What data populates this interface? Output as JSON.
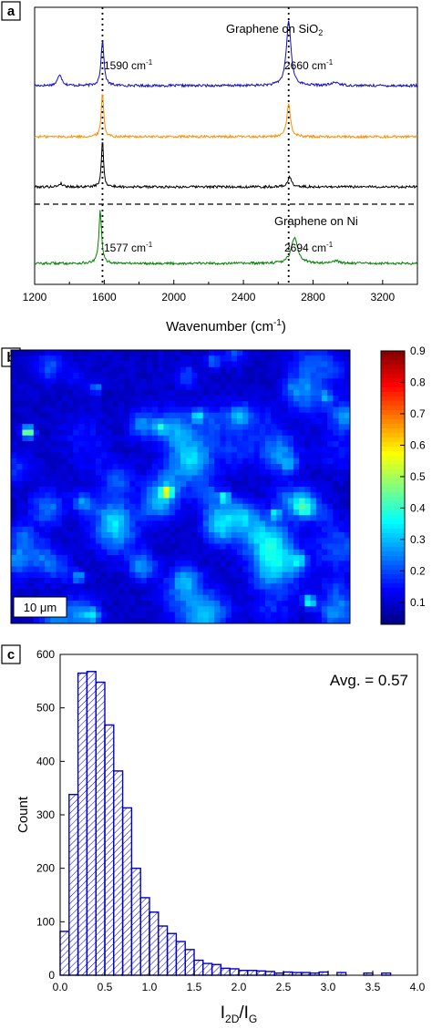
{
  "panels": {
    "a": {
      "letter": "a"
    },
    "b": {
      "letter": "b"
    },
    "c": {
      "letter": "c"
    }
  },
  "chart_data": [
    {
      "type": "line",
      "panel": "a",
      "xlabel": "Wavenumber (cm",
      "xlabel_sup": "-1",
      "xlabel_close": ")",
      "xlim": [
        1200,
        3400
      ],
      "xticks": [
        1200,
        1600,
        2000,
        2400,
        2800,
        3200
      ],
      "y_axis_shown": false,
      "vlines": [
        1590,
        2660
      ],
      "separator": "dashed horizontal line between the third and fourth spectra",
      "annotations": [
        {
          "id": "sio2",
          "text": "Graphene on SiO",
          "sub": "2"
        },
        {
          "id": "ni",
          "text": "Graphene on Ni",
          "sub": ""
        },
        {
          "id": "g_sio2",
          "text": "1590 cm",
          "sup": "-1"
        },
        {
          "id": "d2_sio2",
          "text": "2660 cm",
          "sup": "-1"
        },
        {
          "id": "g_ni",
          "text": "1577 cm",
          "sup": "-1"
        },
        {
          "id": "d2_ni",
          "text": "2694 cm",
          "sup": "-1"
        }
      ],
      "series": [
        {
          "color": "#1010c0",
          "peaks": [
            {
              "x": 1345,
              "height": 0.14,
              "width": 14
            },
            {
              "x": 1590,
              "height": 0.55,
              "width": 10
            },
            {
              "x": 2660,
              "height": 0.78,
              "width": 16
            },
            {
              "x": 2930,
              "height": 0.04,
              "width": 25
            }
          ]
        },
        {
          "color": "#ff8c00",
          "peaks": [
            {
              "x": 1590,
              "height": 0.55,
              "width": 8
            },
            {
              "x": 2660,
              "height": 0.4,
              "width": 12
            }
          ]
        },
        {
          "color": "#000000",
          "peaks": [
            {
              "x": 1350,
              "height": 0.04,
              "width": 14
            },
            {
              "x": 1590,
              "height": 0.58,
              "width": 7
            },
            {
              "x": 2665,
              "height": 0.13,
              "width": 12
            }
          ]
        },
        {
          "color": "#008000",
          "peaks": [
            {
              "x": 1577,
              "height": 0.65,
              "width": 9
            },
            {
              "x": 2694,
              "height": 0.32,
              "width": 22
            },
            {
              "x": 2930,
              "height": 0.03,
              "width": 25
            }
          ]
        }
      ]
    },
    {
      "type": "heatmap",
      "panel": "b",
      "colormap": "jet",
      "colorbar_ticks": [
        0.1,
        0.2,
        0.3,
        0.4,
        0.5,
        0.6,
        0.7,
        0.8,
        0.9
      ],
      "colorbar_range": [
        0.03,
        0.9
      ],
      "scale_bar": "10 μm",
      "hotspots": [
        {
          "col": 0.05,
          "row": 0.3,
          "value": 0.55
        },
        {
          "col": 0.46,
          "row": 0.52,
          "value": 0.45
        },
        {
          "col": 0.55,
          "row": 0.24,
          "value": 0.32
        },
        {
          "col": 0.63,
          "row": 0.54,
          "value": 0.36
        },
        {
          "col": 0.88,
          "row": 0.92,
          "value": 0.42
        },
        {
          "col": 0.78,
          "row": 0.6,
          "value": 0.3
        },
        {
          "col": 0.2,
          "row": 0.83,
          "value": 0.3
        },
        {
          "col": 0.44,
          "row": 0.28,
          "value": 0.28
        },
        {
          "col": 0.25,
          "row": 0.14,
          "value": 0.28
        },
        {
          "col": 0.93,
          "row": 0.17,
          "value": 0.25
        }
      ]
    },
    {
      "type": "bar",
      "panel": "c",
      "xlabel": "I",
      "xlabel_sub1": "2D",
      "xlabel_mid": "/I",
      "xlabel_sub2": "G",
      "ylabel": "Count",
      "annotation": "Avg. = 0.57",
      "xlim": [
        0,
        4
      ],
      "ylim": [
        0,
        600
      ],
      "xticks": [
        0.0,
        0.5,
        1.0,
        1.5,
        2.0,
        2.5,
        3.0,
        3.5,
        4.0
      ],
      "yticks": [
        0,
        100,
        200,
        300,
        400,
        500,
        600
      ],
      "bin_width": 0.1,
      "values": [
        82,
        338,
        565,
        568,
        548,
        468,
        382,
        313,
        200,
        145,
        118,
        92,
        78,
        63,
        48,
        28,
        22,
        20,
        13,
        12,
        9,
        9,
        8,
        7,
        4,
        6,
        5,
        5,
        4,
        6,
        0,
        5,
        0,
        0,
        4,
        0,
        4,
        0,
        0,
        0
      ],
      "hatch": "diagonal lines",
      "bar_color": "#0000c8"
    }
  ]
}
